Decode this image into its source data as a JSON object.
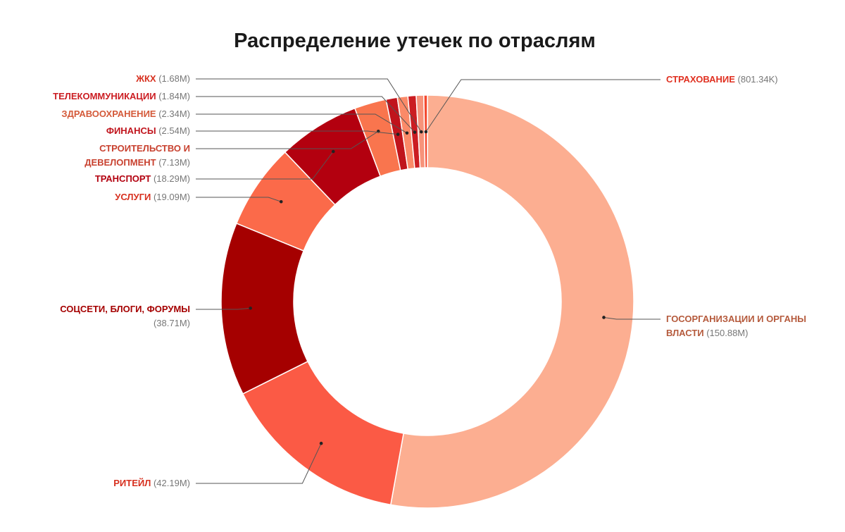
{
  "chart_data": {
    "type": "pie",
    "donut": true,
    "title": "Распределение утечек по отраслям",
    "legend": "none",
    "slices": [
      {
        "label": "ГОСОРГАНИЗАЦИИ И ОРГАНЫ ВЛАСТИ",
        "value": 150.88,
        "display": "150.88M",
        "color": "#fcae91",
        "label_color": "#b55a3c"
      },
      {
        "label": "РИТЕЙЛ",
        "value": 42.19,
        "display": "42.19M",
        "color": "#fb5a45",
        "label_color": "#d7301f"
      },
      {
        "label": "СОЦСЕТИ, БЛОГИ, ФОРУМЫ",
        "value": 38.71,
        "display": "38.71M",
        "color": "#a50000",
        "label_color": "#a50000"
      },
      {
        "label": "УСЛУГИ",
        "value": 19.09,
        "display": "19.09M",
        "color": "#fb6a4a",
        "label_color": "#d7301f"
      },
      {
        "label": "ТРАНСПОРТ",
        "value": 18.29,
        "display": "18.29M",
        "color": "#b3000f",
        "label_color": "#b3000f"
      },
      {
        "label": "СТРОИТЕЛЬСТВО И ДЕВЕЛОПМЕНТ",
        "value": 7.13,
        "display": "7.13M",
        "color": "#f9754e",
        "label_color": "#c8412f"
      },
      {
        "label": "ФИНАНСЫ",
        "value": 2.54,
        "display": "2.54M",
        "color": "#c0141c",
        "label_color": "#c0141c"
      },
      {
        "label": "ЗДРАВООХРАНЕНИЕ",
        "value": 2.34,
        "display": "2.34M",
        "color": "#fb8a68",
        "label_color": "#d45a3a"
      },
      {
        "label": "ТЕЛЕКОММУНИКАЦИИ",
        "value": 1.84,
        "display": "1.84M",
        "color": "#cb1d22",
        "label_color": "#cb1d22"
      },
      {
        "label": "ЖКХ",
        "value": 1.68,
        "display": "1.68M",
        "color": "#f7937a",
        "label_color": "#d7301f"
      },
      {
        "label": "СТРАХОВАНИЕ",
        "value": 0.80134,
        "display": "801.34K",
        "color": "#f4492f",
        "label_color": "#e03020"
      }
    ]
  }
}
